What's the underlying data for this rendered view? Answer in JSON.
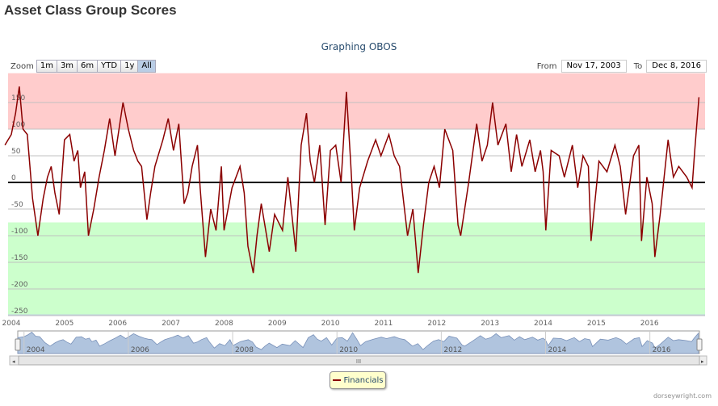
{
  "page_title": "Asset Class Group Scores",
  "range_selector": {
    "zoom_label": "Zoom",
    "buttons": [
      "1m",
      "3m",
      "6m",
      "YTD",
      "1y",
      "All"
    ],
    "selected": "All",
    "from_label": "From",
    "from_value": "Nov 17, 2003",
    "to_label": "To",
    "to_value": "Dec 8, 2016"
  },
  "credit": "dorseywright.com",
  "colors": {
    "line": "#8b0000",
    "overbought": "#ffcccc",
    "oversold": "#ccffcc",
    "navigator": "#b0c4de"
  },
  "chart_data": {
    "type": "line",
    "title": "Graphing OBOS",
    "xlabel": "",
    "ylabel": "",
    "ylim": [
      -250,
      205
    ],
    "xlim": [
      2003.88,
      2016.95
    ],
    "yticks": [
      -250,
      -200,
      -150,
      -100,
      -50,
      0,
      50,
      100,
      150
    ],
    "xticks": [
      "2004",
      "2005",
      "2006",
      "2007",
      "2008",
      "2009",
      "2010",
      "2011",
      "2012",
      "2013",
      "2014",
      "2015",
      "2016"
    ],
    "navigator_ticks": [
      "2004",
      "2006",
      "2008",
      "2010",
      "2012",
      "2014",
      "2016"
    ],
    "bands": [
      {
        "name": "overbought",
        "from": 100,
        "to": 205
      },
      {
        "name": "oversold",
        "from": -250,
        "to": -75
      }
    ],
    "legend": "bottom-center",
    "series": [
      {
        "name": "Financials",
        "x": [
          2003.88,
          2004.0,
          2004.08,
          2004.15,
          2004.22,
          2004.3,
          2004.4,
          2004.5,
          2004.6,
          2004.68,
          2004.75,
          2004.82,
          2004.9,
          2005.0,
          2005.1,
          2005.18,
          2005.25,
          2005.3,
          2005.38,
          2005.45,
          2005.55,
          2005.65,
          2005.75,
          2005.85,
          2005.95,
          2006.1,
          2006.2,
          2006.3,
          2006.38,
          2006.45,
          2006.55,
          2006.62,
          2006.7,
          2006.85,
          2006.95,
          2007.05,
          2007.15,
          2007.25,
          2007.32,
          2007.4,
          2007.5,
          2007.55,
          2007.65,
          2007.75,
          2007.85,
          2007.95,
          2008.0,
          2008.15,
          2008.3,
          2008.38,
          2008.45,
          2008.55,
          2008.62,
          2008.7,
          2008.85,
          2008.95,
          2009.1,
          2009.2,
          2009.35,
          2009.45,
          2009.55,
          2009.62,
          2009.7,
          2009.8,
          2009.9,
          2010.0,
          2010.1,
          2010.2,
          2010.3,
          2010.38,
          2010.45,
          2010.55,
          2010.7,
          2010.85,
          2010.95,
          2011.1,
          2011.2,
          2011.3,
          2011.45,
          2011.55,
          2011.65,
          2011.75,
          2011.85,
          2011.95,
          2012.05,
          2012.15,
          2012.3,
          2012.4,
          2012.45,
          2012.6,
          2012.75,
          2012.85,
          2012.95,
          2013.05,
          2013.15,
          2013.3,
          2013.4,
          2013.5,
          2013.6,
          2013.75,
          2013.85,
          2013.95,
          2014.0,
          2014.05,
          2014.15,
          2014.3,
          2014.4,
          2014.55,
          2014.65,
          2014.75,
          2014.85,
          2014.9,
          2015.05,
          2015.2,
          2015.35,
          2015.45,
          2015.55,
          2015.7,
          2015.8,
          2015.85,
          2015.95,
          2016.05,
          2016.1,
          2016.2,
          2016.35,
          2016.45,
          2016.55,
          2016.7,
          2016.8,
          2016.85,
          2016.93
        ],
        "y": [
          70,
          90,
          130,
          180,
          100,
          90,
          -30,
          -100,
          -30,
          10,
          30,
          -20,
          -60,
          80,
          90,
          40,
          60,
          -10,
          20,
          -100,
          -50,
          10,
          60,
          120,
          50,
          150,
          100,
          60,
          40,
          30,
          -70,
          -20,
          30,
          80,
          120,
          60,
          110,
          -40,
          -20,
          30,
          70,
          -10,
          -140,
          -50,
          -90,
          30,
          -90,
          -10,
          30,
          -20,
          -120,
          -170,
          -100,
          -40,
          -130,
          -60,
          -90,
          10,
          -130,
          70,
          130,
          40,
          0,
          70,
          -80,
          60,
          70,
          0,
          170,
          40,
          -90,
          -10,
          40,
          80,
          50,
          90,
          50,
          30,
          -100,
          -50,
          -170,
          -80,
          0,
          30,
          -10,
          100,
          60,
          -80,
          -100,
          0,
          110,
          40,
          70,
          150,
          70,
          110,
          20,
          90,
          30,
          80,
          20,
          60,
          20,
          -90,
          60,
          50,
          10,
          70,
          -10,
          50,
          30,
          -110,
          40,
          20,
          70,
          30,
          -60,
          50,
          70,
          -110,
          10,
          -40,
          -140,
          -60,
          80,
          10,
          30,
          10,
          -10,
          60,
          160
        ]
      }
    ]
  }
}
